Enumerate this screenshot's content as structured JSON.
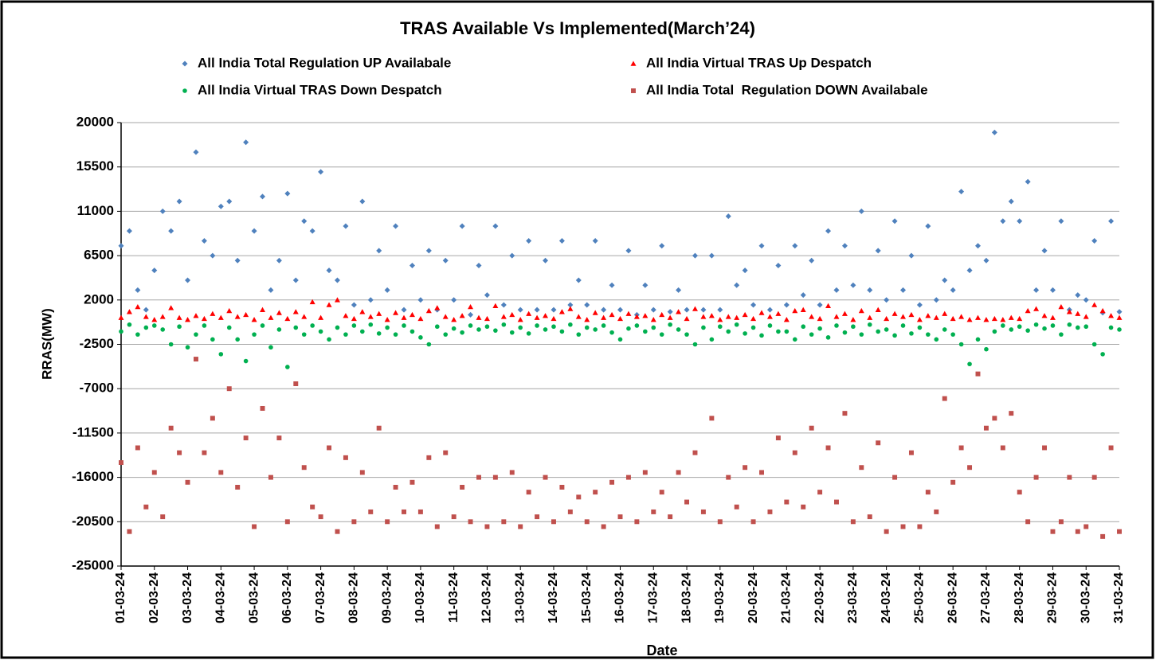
{
  "chart_data": {
    "type": "scatter",
    "title": "TRAS Available Vs Implemented(March’24)",
    "x_label": "Date",
    "y_label": "RRAS(MW)",
    "xlim": [
      0,
      30
    ],
    "ylim": [
      -25000,
      20000
    ],
    "yticks": [
      -25000,
      -20500,
      -16000,
      -11500,
      -7000,
      -2500,
      2000,
      6500,
      11000,
      15500,
      20000
    ],
    "xticks": [
      {
        "value": 0,
        "label": "01-03-24"
      },
      {
        "value": 1,
        "label": "02-03-24"
      },
      {
        "value": 2,
        "label": "03-03-24"
      },
      {
        "value": 3,
        "label": "04-03-24"
      },
      {
        "value": 4,
        "label": "05-03-24"
      },
      {
        "value": 5,
        "label": "06-03-24"
      },
      {
        "value": 6,
        "label": "07-03-24"
      },
      {
        "value": 7,
        "label": "08-03-24"
      },
      {
        "value": 8,
        "label": "09-03-24"
      },
      {
        "value": 9,
        "label": "10-03-24"
      },
      {
        "value": 10,
        "label": "11-03-24"
      },
      {
        "value": 11,
        "label": "12-03-24"
      },
      {
        "value": 12,
        "label": "13-03-24"
      },
      {
        "value": 13,
        "label": "14-03-24"
      },
      {
        "value": 14,
        "label": "15-03-24"
      },
      {
        "value": 15,
        "label": "16-03-24"
      },
      {
        "value": 16,
        "label": "17-03-24"
      },
      {
        "value": 17,
        "label": "18-03-24"
      },
      {
        "value": 18,
        "label": "19-03-24"
      },
      {
        "value": 19,
        "label": "20-03-24"
      },
      {
        "value": 20,
        "label": "21-03-24"
      },
      {
        "value": 21,
        "label": "22-03-24"
      },
      {
        "value": 22,
        "label": "23-03-24"
      },
      {
        "value": 23,
        "label": "24-03-24"
      },
      {
        "value": 24,
        "label": "25-03-24"
      },
      {
        "value": 25,
        "label": "26-03-24"
      },
      {
        "value": 26,
        "label": "27-03-24"
      },
      {
        "value": 27,
        "label": "28-03-24"
      },
      {
        "value": 28,
        "label": "29-03-24"
      },
      {
        "value": 29,
        "label": "30-03-24"
      },
      {
        "value": 30,
        "label": "31-03-24"
      }
    ],
    "grid": true,
    "x": [
      0,
      0.25,
      0.5,
      0.75,
      1,
      1.25,
      1.5,
      1.75,
      2,
      2.25,
      2.5,
      2.75,
      3,
      3.25,
      3.5,
      3.75,
      4,
      4.25,
      4.5,
      4.75,
      5,
      5.25,
      5.5,
      5.75,
      6,
      6.25,
      6.5,
      6.75,
      7,
      7.25,
      7.5,
      7.75,
      8,
      8.25,
      8.5,
      8.75,
      9,
      9.25,
      9.5,
      9.75,
      10,
      10.25,
      10.5,
      10.75,
      11,
      11.25,
      11.5,
      11.75,
      12,
      12.25,
      12.5,
      12.75,
      13,
      13.25,
      13.5,
      13.75,
      14,
      14.25,
      14.5,
      14.75,
      15,
      15.25,
      15.5,
      15.75,
      16,
      16.25,
      16.5,
      16.75,
      17,
      17.25,
      17.5,
      17.75,
      18,
      18.25,
      18.5,
      18.75,
      19,
      19.25,
      19.5,
      19.75,
      20,
      20.25,
      20.5,
      20.75,
      21,
      21.25,
      21.5,
      21.75,
      22,
      22.25,
      22.5,
      22.75,
      23,
      23.25,
      23.5,
      23.75,
      24,
      24.25,
      24.5,
      24.75,
      25,
      25.25,
      25.5,
      25.75,
      26,
      26.25,
      26.5,
      26.75,
      27,
      27.25,
      27.5,
      27.75,
      28,
      28.25,
      28.5,
      28.75,
      29,
      29.25,
      29.5,
      29.75,
      30
    ],
    "series": [
      {
        "name": "All India Total Regulation UP Availabale",
        "color": "#4f81bd",
        "marker": "diamond",
        "values": [
          7500,
          9000,
          3000,
          1000,
          5000,
          11000,
          9000,
          12000,
          4000,
          17000,
          8000,
          6500,
          11500,
          12000,
          6000,
          18000,
          9000,
          12500,
          3000,
          6000,
          12800,
          4000,
          10000,
          9000,
          15000,
          5000,
          4000,
          9500,
          1500,
          12000,
          2000,
          7000,
          3000,
          9500,
          1000,
          5500,
          2000,
          7000,
          1000,
          6000,
          2000,
          9500,
          500,
          5500,
          2500,
          9500,
          1500,
          6500,
          1000,
          8000,
          1000,
          6000,
          1000,
          8000,
          1500,
          4000,
          1500,
          8000,
          1000,
          3500,
          1000,
          7000,
          500,
          3500,
          1000,
          7500,
          800,
          3000,
          1000,
          6500,
          1000,
          6500,
          1000,
          10500,
          3500,
          5000,
          1500,
          7500,
          1000,
          5500,
          1500,
          7500,
          2500,
          6000,
          1500,
          9000,
          3000,
          7500,
          3500,
          11000,
          3000,
          7000,
          2000,
          10000,
          3000,
          6500,
          1500,
          9500,
          2000,
          4000,
          3000,
          13000,
          5000,
          7500,
          6000,
          19000,
          10000,
          12000,
          10000,
          14000,
          3000,
          7000,
          3000,
          10000,
          1000,
          2500,
          2000,
          8000,
          700,
          10000,
          800
        ]
      },
      {
        "name": "All India Virtual TRAS Up Despatch",
        "color": "#ff0000",
        "marker": "triangle",
        "values": [
          200,
          800,
          1300,
          300,
          0,
          300,
          1200,
          200,
          0,
          400,
          100,
          600,
          200,
          900,
          300,
          500,
          0,
          1000,
          200,
          700,
          100,
          800,
          300,
          1800,
          200,
          1500,
          2000,
          400,
          100,
          800,
          300,
          600,
          0,
          700,
          200,
          500,
          100,
          900,
          1200,
          300,
          0,
          400,
          1300,
          200,
          100,
          1400,
          300,
          500,
          0,
          600,
          200,
          400,
          100,
          800,
          1100,
          300,
          0,
          700,
          200,
          500,
          100,
          600,
          300,
          400,
          0,
          500,
          200,
          800,
          100,
          1100,
          300,
          400,
          0,
          300,
          200,
          500,
          100,
          700,
          300,
          600,
          0,
          900,
          1000,
          300,
          100,
          1400,
          300,
          600,
          0,
          900,
          200,
          1000,
          100,
          600,
          300,
          500,
          0,
          400,
          200,
          600,
          100,
          300,
          0,
          200,
          0,
          100,
          0,
          200,
          100,
          900,
          1100,
          400,
          200,
          1300,
          800,
          600,
          300,
          1500,
          900,
          400,
          200
        ]
      },
      {
        "name": "All India Virtual TRAS Down Despatch",
        "color": "#00b050",
        "marker": "circle",
        "values": [
          -1200,
          -500,
          -1500,
          -800,
          -600,
          -1000,
          -2500,
          -700,
          -2800,
          -1500,
          -600,
          -2000,
          -3500,
          -800,
          -2000,
          -4200,
          -1500,
          -600,
          -2800,
          -1000,
          -4800,
          -800,
          -1500,
          -600,
          -1200,
          -2000,
          -800,
          -1500,
          -600,
          -1200,
          -500,
          -1400,
          -800,
          -1500,
          -600,
          -1200,
          -1800,
          -2500,
          -700,
          -1500,
          -900,
          -1300,
          -600,
          -1000,
          -700,
          -1100,
          -500,
          -1300,
          -800,
          -1400,
          -600,
          -1000,
          -700,
          -1200,
          -500,
          -1500,
          -800,
          -1000,
          -600,
          -1300,
          -2000,
          -900,
          -600,
          -1200,
          -800,
          -1500,
          -500,
          -1000,
          -1500,
          -2500,
          -800,
          -2000,
          -700,
          -1200,
          -500,
          -1400,
          -800,
          -1600,
          -600,
          -1200,
          -1200,
          -2000,
          -700,
          -1500,
          -900,
          -1800,
          -600,
          -1300,
          -700,
          -1500,
          -500,
          -1200,
          -1000,
          -1600,
          -600,
          -1400,
          -800,
          -1500,
          -2000,
          -1000,
          -1500,
          -2500,
          -4500,
          -2000,
          -3000,
          -1200,
          -600,
          -1000,
          -700,
          -1100,
          -500,
          -900,
          -600,
          -1500,
          -500,
          -800,
          -700,
          -2500,
          -3500,
          -800,
          -1000
        ]
      },
      {
        "name": "All India Total  Regulation DOWN Availabale",
        "color": "#c0504d",
        "marker": "square",
        "values": [
          -14500,
          -21500,
          -13000,
          -19000,
          -15500,
          -20000,
          -11000,
          -13500,
          -16500,
          -4000,
          -13500,
          -10000,
          -15500,
          -7000,
          -17000,
          -12000,
          -21000,
          -9000,
          -16000,
          -12000,
          -20500,
          -6500,
          -15000,
          -19000,
          -20000,
          -13000,
          -21500,
          -14000,
          -20500,
          -15500,
          -19500,
          -11000,
          -20500,
          -17000,
          -19500,
          -16500,
          -19500,
          -14000,
          -21000,
          -13500,
          -20000,
          -17000,
          -20500,
          -16000,
          -21000,
          -16000,
          -20500,
          -15500,
          -21000,
          -17500,
          -20000,
          -16000,
          -20500,
          -17000,
          -19500,
          -18000,
          -20500,
          -17500,
          -21000,
          -16500,
          -20000,
          -16000,
          -20500,
          -15500,
          -19500,
          -17500,
          -20000,
          -15500,
          -18500,
          -13500,
          -19500,
          -10000,
          -20500,
          -16000,
          -19000,
          -15000,
          -20500,
          -15500,
          -19500,
          -12000,
          -18500,
          -13500,
          -19000,
          -11000,
          -17500,
          -13000,
          -18500,
          -9500,
          -20500,
          -15000,
          -20000,
          -12500,
          -21500,
          -16000,
          -21000,
          -13500,
          -21000,
          -17500,
          -19500,
          -8000,
          -16500,
          -13000,
          -15000,
          -5500,
          -11000,
          -10000,
          -13000,
          -9500,
          -17500,
          -20500,
          -16000,
          -13000,
          -21500,
          -20500,
          -16000,
          -21500,
          -21000,
          -16000,
          -22000,
          -13000,
          -21500
        ]
      }
    ]
  }
}
